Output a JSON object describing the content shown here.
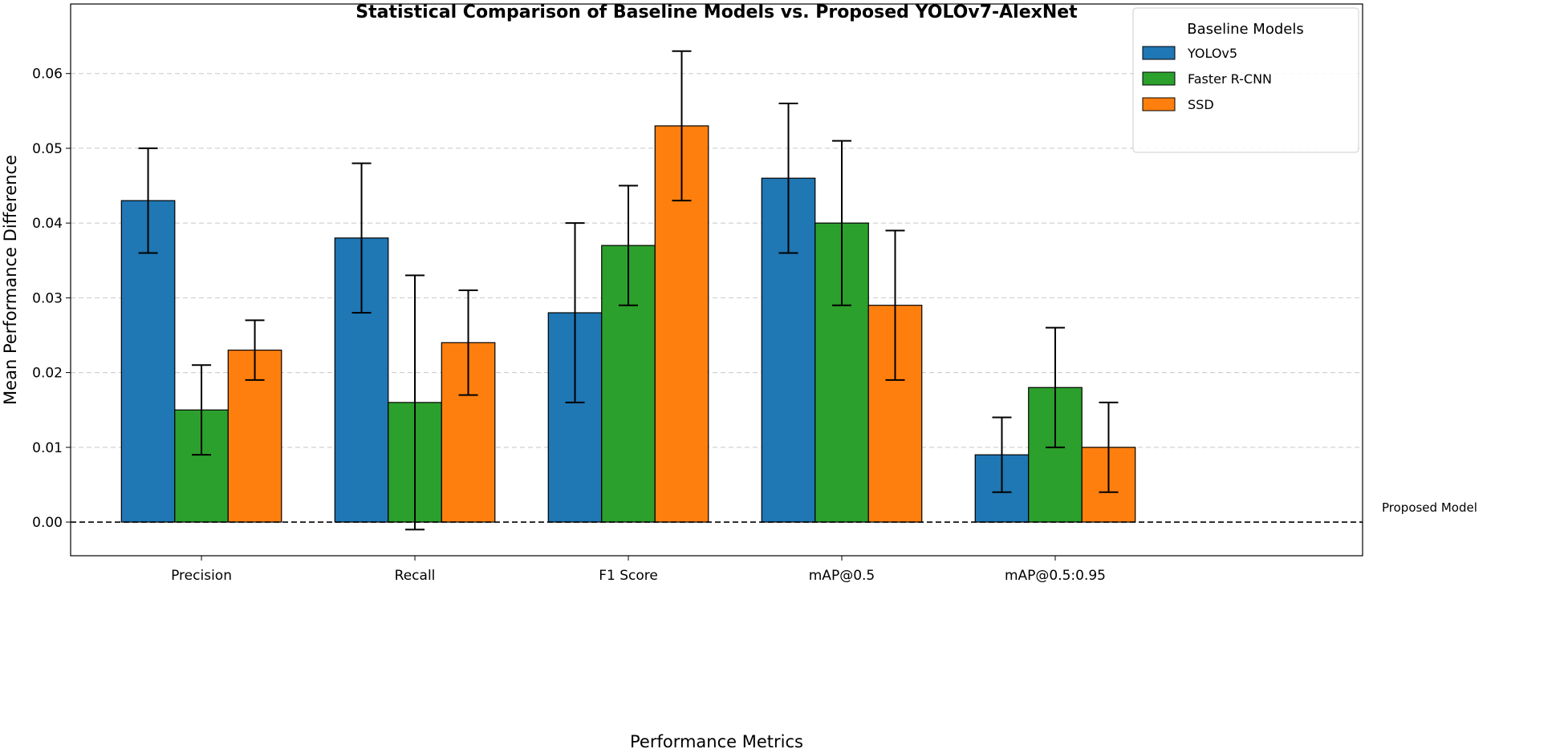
{
  "chart_data": {
    "type": "bar",
    "title": "Statistical Comparison of Baseline Models vs. Proposed YOLOv7-AlexNet",
    "xlabel": "Performance Metrics",
    "ylabel": "Mean Performance Difference",
    "categories": [
      "Precision",
      "Recall",
      "F1 Score",
      "mAP@0.5",
      "mAP@0.5:0.95"
    ],
    "ylim": [
      -0.0045,
      0.0693
    ],
    "xlim": [
      -0.613,
      5.44
    ],
    "yticks": [
      0.0,
      0.01,
      0.02,
      0.03,
      0.04,
      0.05,
      0.06
    ],
    "ytick_labels": [
      "0.00",
      "0.01",
      "0.02",
      "0.03",
      "0.04",
      "0.05",
      "0.06"
    ],
    "grid": "y-dashed",
    "legend": {
      "title": "Baseline Models",
      "placement": "top-right"
    },
    "reference_line": {
      "y": 0,
      "label": "Proposed Model"
    },
    "series": [
      {
        "name": "YOLOv5",
        "color": "#1f77b4",
        "values": [
          0.043,
          0.038,
          0.028,
          0.046,
          0.009
        ],
        "errors": [
          0.007,
          0.01,
          0.012,
          0.01,
          0.005
        ]
      },
      {
        "name": "Faster R-CNN",
        "color": "#2ca02c",
        "values": [
          0.015,
          0.016,
          0.037,
          0.04,
          0.018
        ],
        "errors": [
          0.006,
          0.017,
          0.008,
          0.011,
          0.008
        ]
      },
      {
        "name": "SSD",
        "color": "#ff7f0e",
        "values": [
          0.023,
          0.024,
          0.053,
          0.029,
          0.01
        ],
        "errors": [
          0.004,
          0.007,
          0.01,
          0.01,
          0.006
        ]
      }
    ]
  }
}
